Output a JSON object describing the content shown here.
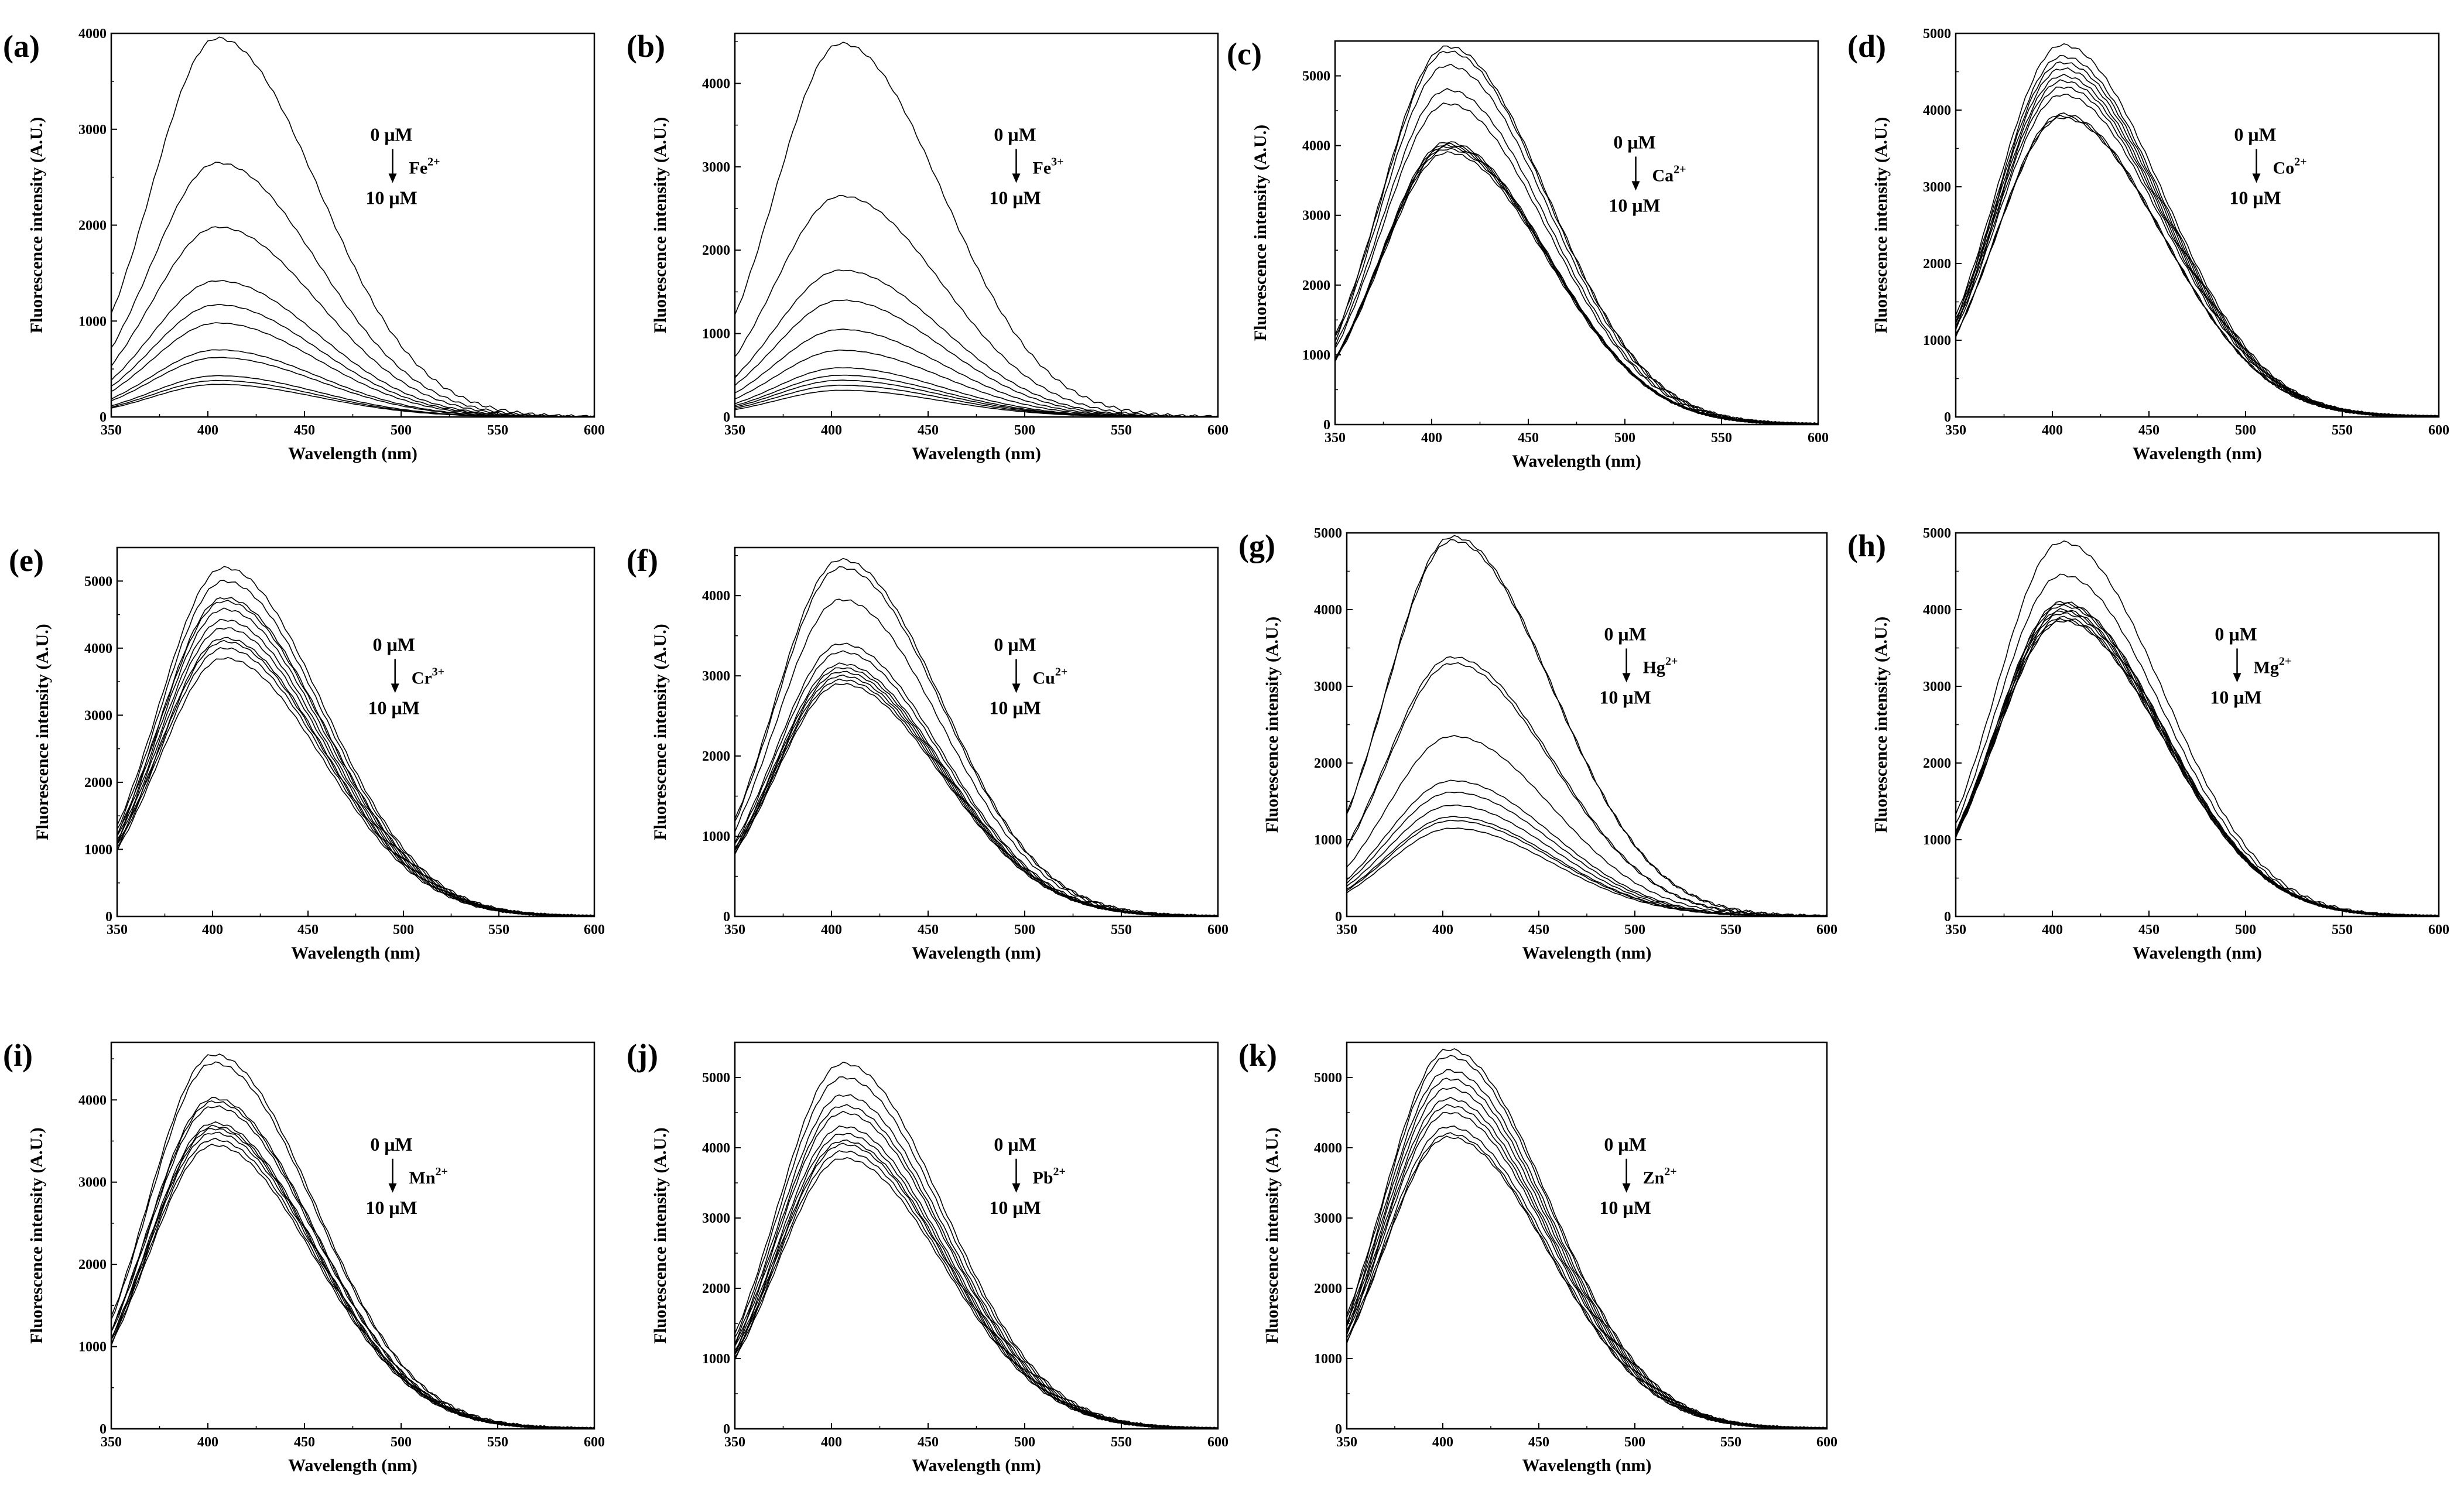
{
  "chart_data": [
    {
      "panel": "(a)",
      "type": "line",
      "xlabel": "Wavelength (nm)",
      "ylabel": "Fluorescence intensity (A.U.)",
      "xlim": [
        350,
        600
      ],
      "ylim": [
        0,
        4000
      ],
      "xticks": [
        350,
        400,
        450,
        500,
        550,
        600
      ],
      "yticks": [
        0,
        1000,
        2000,
        3000,
        4000
      ],
      "annotation": {
        "start": "0 μM",
        "end": "10 μM",
        "ion": "Fe",
        "charge": "2+"
      },
      "series_peaks": [
        3950,
        2650,
        1980,
        1420,
        1170,
        980,
        700,
        620,
        430,
        380,
        340
      ],
      "peak_wavelength": 405
    },
    {
      "panel": "(b)",
      "type": "line",
      "xlabel": "Wavelength (nm)",
      "ylabel": "Fluorescence intensity (A.U.)",
      "xlim": [
        350,
        600
      ],
      "ylim": [
        0,
        4600
      ],
      "xticks": [
        350,
        400,
        450,
        500,
        550,
        600
      ],
      "yticks": [
        0,
        1000,
        2000,
        3000,
        4000
      ],
      "annotation": {
        "start": "0 μM",
        "end": "10 μM",
        "ion": "Fe",
        "charge": "3+"
      },
      "series_peaks": [
        4480,
        2650,
        1760,
        1400,
        1050,
        800,
        590,
        500,
        440,
        380,
        320
      ],
      "peak_wavelength": 405
    },
    {
      "panel": "(c)",
      "type": "line",
      "xlabel": "Wavelength (nm)",
      "ylabel": "Fluorescence intensity (A.U.)",
      "xlim": [
        350,
        600
      ],
      "ylim": [
        0,
        5500
      ],
      "xticks": [
        350,
        400,
        450,
        500,
        550,
        600
      ],
      "yticks": [
        0,
        1000,
        2000,
        3000,
        4000,
        5000
      ],
      "annotation": {
        "start": "0 μM",
        "end": "10 μM",
        "ion": "Ca",
        "charge": "2+"
      },
      "series_peaks": [
        5420,
        5350,
        5150,
        4800,
        4600,
        4050,
        4020,
        4000,
        3980,
        3950,
        3900
      ],
      "peak_wavelength": 408
    },
    {
      "panel": "(d)",
      "type": "line",
      "xlabel": "Wavelength (nm)",
      "ylabel": "Fluorescence intensity (A.U.)",
      "xlim": [
        350,
        600
      ],
      "ylim": [
        0,
        5000
      ],
      "xticks": [
        350,
        400,
        450,
        500,
        550,
        600
      ],
      "yticks": [
        0,
        1000,
        2000,
        3000,
        4000,
        5000
      ],
      "annotation": {
        "start": "0 μM",
        "end": "10 μM",
        "ion": "Co",
        "charge": "2+"
      },
      "series_peaks": [
        4850,
        4700,
        4620,
        4540,
        4450,
        4380,
        4300,
        4200,
        3950,
        3920,
        3900
      ],
      "peak_wavelength": 405
    },
    {
      "panel": "(e)",
      "type": "line",
      "xlabel": "Wavelength (nm)",
      "ylabel": "Fluorescence intensity (A.U.)",
      "xlim": [
        350,
        600
      ],
      "ylim": [
        0,
        5500
      ],
      "xticks": [
        350,
        400,
        450,
        500,
        550,
        600
      ],
      "yticks": [
        0,
        1000,
        2000,
        3000,
        4000,
        5000
      ],
      "annotation": {
        "start": "0 μM",
        "end": "10 μM",
        "ion": "Cr",
        "charge": "3+"
      },
      "series_peaks": [
        5200,
        5000,
        4750,
        4700,
        4580,
        4420,
        4300,
        4150,
        4100,
        4000,
        3850
      ],
      "peak_wavelength": 406
    },
    {
      "panel": "(f)",
      "type": "line",
      "xlabel": "Wavelength (nm)",
      "ylabel": "Fluorescence intensity (A.U.)",
      "xlim": [
        350,
        600
      ],
      "ylim": [
        0,
        4600
      ],
      "xticks": [
        350,
        400,
        450,
        500,
        550,
        600
      ],
      "yticks": [
        0,
        1000,
        2000,
        3000,
        4000
      ],
      "annotation": {
        "start": "0 μM",
        "end": "10 μM",
        "ion": "Cu",
        "charge": "2+"
      },
      "series_peaks": [
        4450,
        4350,
        3950,
        3400,
        3300,
        3150,
        3100,
        3050,
        3000,
        2950,
        2900
      ],
      "peak_wavelength": 405
    },
    {
      "panel": "(g)",
      "type": "line",
      "xlabel": "Wavelength (nm)",
      "ylabel": "Fluorescence intensity (A.U.)",
      "xlim": [
        350,
        600
      ],
      "ylim": [
        0,
        5000
      ],
      "xticks": [
        350,
        400,
        450,
        500,
        550,
        600
      ],
      "yticks": [
        0,
        1000,
        2000,
        3000,
        4000,
        5000
      ],
      "annotation": {
        "start": "0 μM",
        "end": "10 μM",
        "ion": "Hg",
        "charge": "2+"
      },
      "series_peaks": [
        4950,
        4900,
        3380,
        3300,
        2350,
        1770,
        1620,
        1450,
        1300,
        1250,
        1150
      ],
      "peak_wavelength": 405
    },
    {
      "panel": "(h)",
      "type": "line",
      "xlabel": "Wavelength (nm)",
      "ylabel": "Fluorescence intensity (A.U.)",
      "xlim": [
        350,
        600
      ],
      "ylim": [
        0,
        5000
      ],
      "xticks": [
        350,
        400,
        450,
        500,
        550,
        600
      ],
      "yticks": [
        0,
        1000,
        2000,
        3000,
        4000,
        5000
      ],
      "annotation": {
        "start": "0 μM",
        "end": "10 μM",
        "ion": "Mg",
        "charge": "2+"
      },
      "series_peaks": [
        4880,
        4450,
        4100,
        4080,
        4050,
        4000,
        3980,
        3950,
        3900,
        3870,
        3850
      ],
      "peak_wavelength": 405
    },
    {
      "panel": "(i)",
      "type": "line",
      "xlabel": "Wavelength (nm)",
      "ylabel": "Fluorescence intensity (A.U.)",
      "xlim": [
        350,
        600
      ],
      "ylim": [
        0,
        4700
      ],
      "xticks": [
        350,
        400,
        450,
        500,
        550,
        600
      ],
      "yticks": [
        0,
        1000,
        2000,
        3000,
        4000
      ],
      "annotation": {
        "start": "0 μM",
        "end": "10 μM",
        "ion": "Mn",
        "charge": "2+"
      },
      "series_peaks": [
        4550,
        4450,
        4020,
        3980,
        3920,
        3720,
        3680,
        3650,
        3600,
        3520,
        3450
      ],
      "peak_wavelength": 403
    },
    {
      "panel": "(j)",
      "type": "line",
      "xlabel": "Wavelength (nm)",
      "ylabel": "Fluorescence intensity (A.U.)",
      "xlim": [
        350,
        600
      ],
      "ylim": [
        0,
        5500
      ],
      "xticks": [
        350,
        400,
        450,
        500,
        550,
        600
      ],
      "yticks": [
        0,
        1000,
        2000,
        3000,
        4000,
        5000
      ],
      "annotation": {
        "start": "0 μM",
        "end": "10 μM",
        "ion": "Pb",
        "charge": "2+"
      },
      "series_peaks": [
        5200,
        5000,
        4750,
        4600,
        4500,
        4300,
        4200,
        4100,
        4050,
        3950,
        3850
      ],
      "peak_wavelength": 406
    },
    {
      "panel": "(k)",
      "type": "line",
      "xlabel": "Wavelength (nm)",
      "ylabel": "Fluorescence intensity (A.U.)",
      "xlim": [
        350,
        600
      ],
      "ylim": [
        0,
        5500
      ],
      "xticks": [
        350,
        400,
        450,
        500,
        550,
        600
      ],
      "yticks": [
        0,
        1000,
        2000,
        3000,
        4000,
        5000
      ],
      "annotation": {
        "start": "0 μM",
        "end": "10 μM",
        "ion": "Zn",
        "charge": "2+"
      },
      "series_peaks": [
        5400,
        5300,
        5100,
        4980,
        4850,
        4700,
        4600,
        4500,
        4300,
        4200,
        4150
      ],
      "peak_wavelength": 403
    }
  ]
}
